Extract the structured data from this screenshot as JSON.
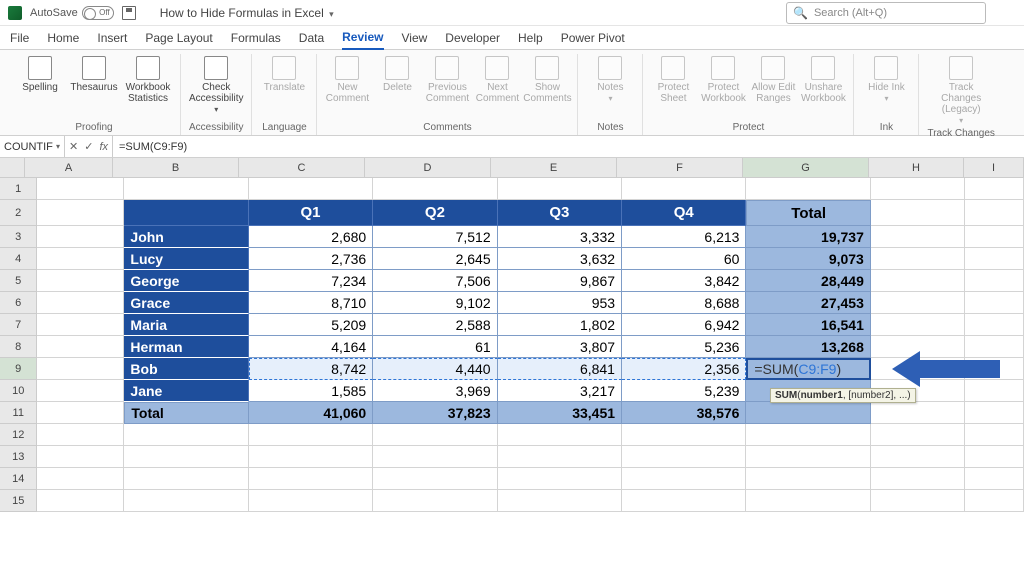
{
  "titlebar": {
    "autosave_label": "AutoSave",
    "autosave_state": "Off",
    "doc_title": "How to Hide Formulas in Excel",
    "search_placeholder": "Search (Alt+Q)"
  },
  "tabs": {
    "file": "File",
    "home": "Home",
    "insert": "Insert",
    "page_layout": "Page Layout",
    "formulas": "Formulas",
    "data": "Data",
    "review": "Review",
    "view": "View",
    "developer": "Developer",
    "help": "Help",
    "power_pivot": "Power Pivot"
  },
  "ribbon": {
    "spelling": "Spelling",
    "thesaurus": "Thesaurus",
    "workbook_stats": "Workbook Statistics",
    "check_access": "Check Accessibility",
    "translate": "Translate",
    "new_comment": "New Comment",
    "delete": "Delete",
    "prev_comment": "Previous Comment",
    "next_comment": "Next Comment",
    "show_comments": "Show Comments",
    "notes": "Notes",
    "protect_sheet": "Protect Sheet",
    "protect_wb": "Protect Workbook",
    "allow_edit": "Allow Edit Ranges",
    "unshare": "Unshare Workbook",
    "hide_ink": "Hide Ink",
    "track_changes": "Track Changes (Legacy)",
    "g_proofing": "Proofing",
    "g_access": "Accessibility",
    "g_lang": "Language",
    "g_comments": "Comments",
    "g_notes": "Notes",
    "g_protect": "Protect",
    "g_ink": "Ink",
    "g_track": "Track Changes"
  },
  "formula_bar": {
    "name_box": "COUNTIF",
    "formula": "=SUM(C9:F9)"
  },
  "columns": [
    "A",
    "B",
    "C",
    "D",
    "E",
    "F",
    "G",
    "H",
    "I"
  ],
  "row_numbers": [
    "1",
    "2",
    "3",
    "4",
    "5",
    "6",
    "7",
    "8",
    "9",
    "10",
    "11",
    "12",
    "13",
    "14",
    "15"
  ],
  "table": {
    "headers": {
      "q1": "Q1",
      "q2": "Q2",
      "q3": "Q3",
      "q4": "Q4",
      "total": "Total"
    },
    "names": [
      "John",
      "Lucy",
      "George",
      "Grace",
      "Maria",
      "Herman",
      "Bob",
      "Jane"
    ],
    "data": [
      [
        "2,680",
        "7,512",
        "3,332",
        "6,213",
        "19,737"
      ],
      [
        "2,736",
        "2,645",
        "3,632",
        "60",
        "9,073"
      ],
      [
        "7,234",
        "7,506",
        "9,867",
        "3,842",
        "28,449"
      ],
      [
        "8,710",
        "9,102",
        "953",
        "8,688",
        "27,453"
      ],
      [
        "5,209",
        "2,588",
        "1,802",
        "6,942",
        "16,541"
      ],
      [
        "4,164",
        "61",
        "3,807",
        "5,236",
        "13,268"
      ],
      [
        "8,742",
        "4,440",
        "6,841",
        "2,356",
        ""
      ],
      [
        "1,585",
        "3,969",
        "3,217",
        "5,239",
        ""
      ]
    ],
    "total_label": "Total",
    "totals": [
      "41,060",
      "37,823",
      "33,451",
      "38,576",
      ""
    ]
  },
  "editing": {
    "display_prefix": "=SUM(",
    "display_ref": "C9:F9",
    "display_suffix": ")",
    "tooltip": "SUM(number1, [number2], ...)"
  },
  "colors": {
    "table_header_bg": "#1e4e9c",
    "total_bg": "#9cb8de",
    "arrow": "#2e5fb5",
    "range_highlight": "#e6effb"
  }
}
